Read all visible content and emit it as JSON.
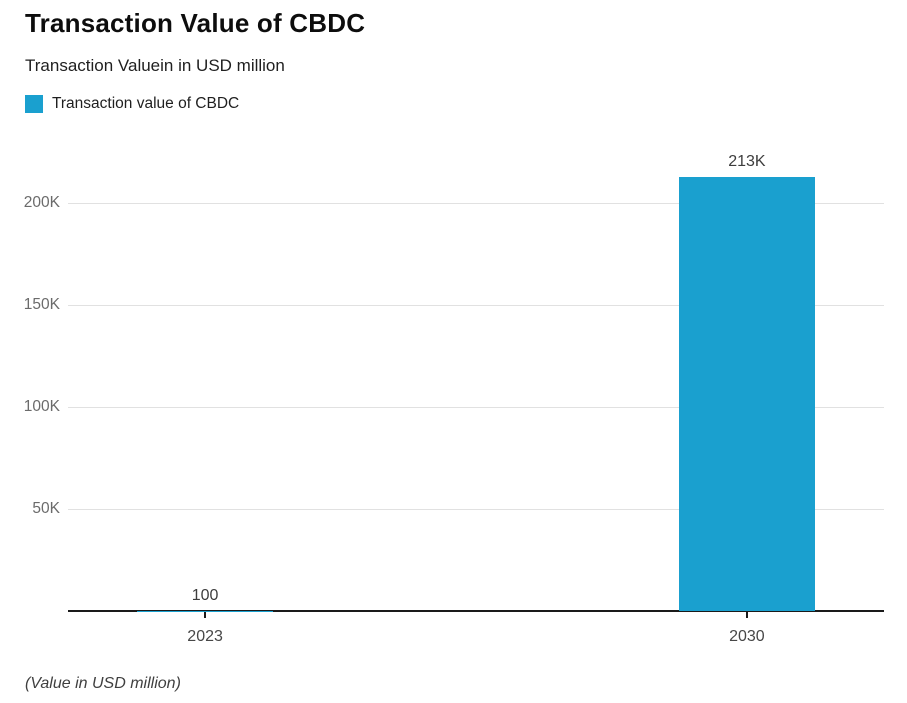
{
  "header": {
    "title": "Transaction Value of CBDC",
    "subtitle": "Transaction Valuein in USD million"
  },
  "legend": {
    "items": [
      {
        "label": "Transaction value of CBDC",
        "color": "#1AA0CF"
      }
    ]
  },
  "footer": {
    "note": "(Value in USD million)"
  },
  "colors": {
    "bar": "#1AA0CF",
    "gridline": "#e1e1e1",
    "axis_line": "#1a1a1a",
    "y_tick_label": "#6b6b6b",
    "x_tick_label": "#474747",
    "value_label": "#3d3d3d",
    "background": "#ffffff"
  },
  "chart_data": {
    "type": "bar",
    "title": "Transaction Value of CBDC",
    "subtitle": "Transaction Valuein in USD million",
    "series_name": "Transaction value of CBDC",
    "categories": [
      "2023",
      "2030"
    ],
    "values": [
      100,
      213000
    ],
    "value_labels": [
      "100",
      "213K"
    ],
    "xlabel": "",
    "ylabel": "",
    "ylim": [
      0,
      231000
    ],
    "yticks": [
      {
        "value": 50000,
        "label": "50K"
      },
      {
        "value": 100000,
        "label": "100K"
      },
      {
        "value": 150000,
        "label": "150K"
      },
      {
        "value": 200000,
        "label": "200K"
      }
    ],
    "grid": "horizontal",
    "legend_position": "top-left",
    "bar_color": "#1AA0CF",
    "note": "(Value in USD million)",
    "layout": {
      "bar_centers_frac": [
        0.168,
        0.832
      ],
      "bar_width_frac": 0.166
    }
  }
}
